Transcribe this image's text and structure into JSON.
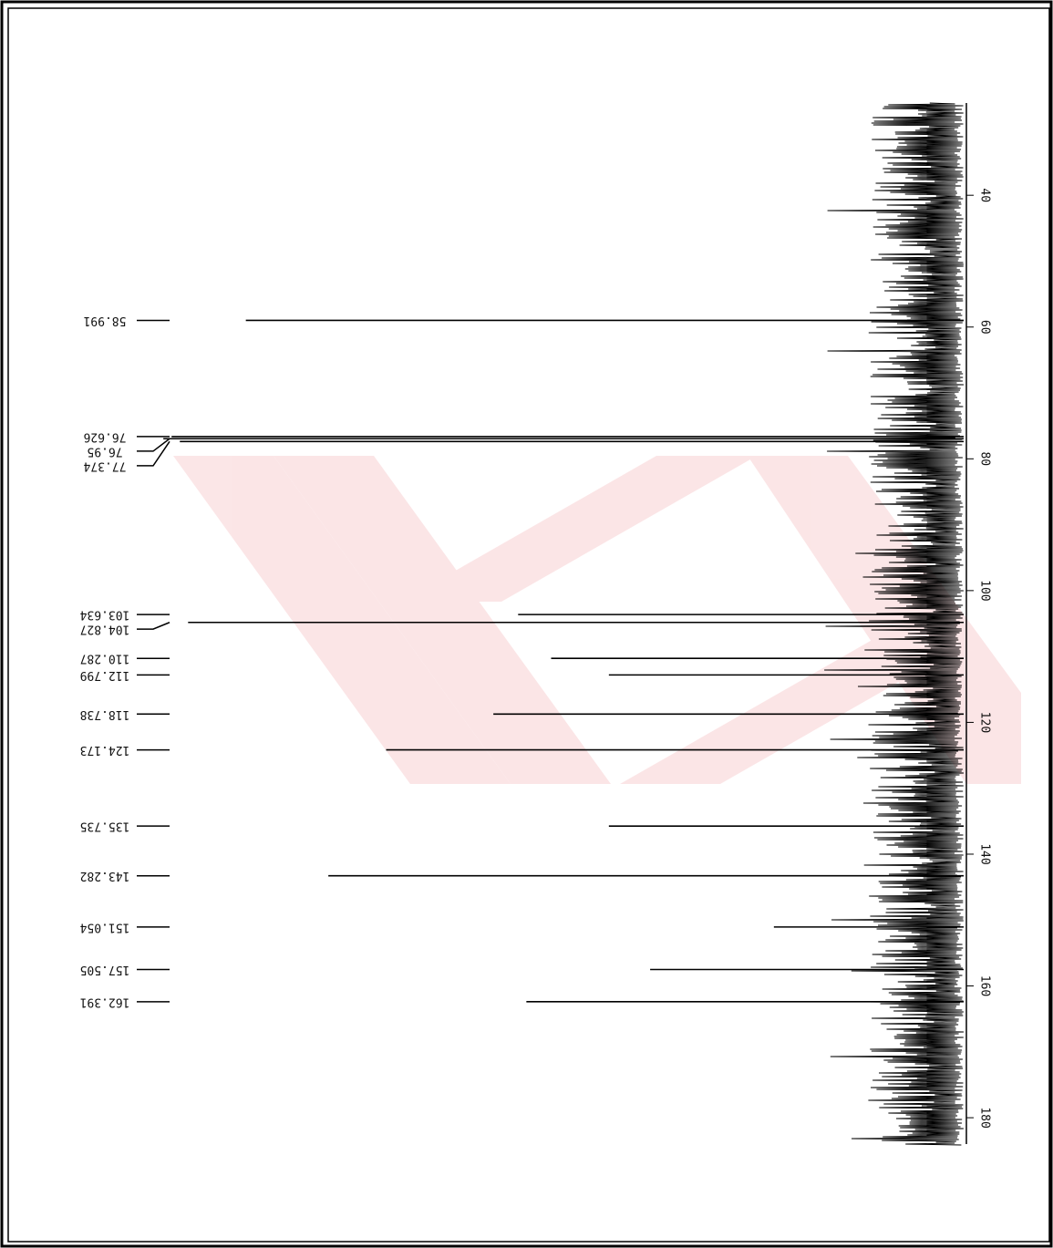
{
  "chart_data": {
    "type": "nmr",
    "x": [
      58.991,
      76.626,
      76.95,
      77.374,
      103.634,
      104.827,
      110.287,
      112.799,
      118.738,
      124.173,
      135.735,
      143.282,
      151.054,
      157.505,
      162.391
    ],
    "values": [
      87,
      96,
      97,
      95,
      54,
      94,
      50,
      43,
      57,
      70,
      43,
      77,
      23,
      38,
      53
    ],
    "xlim": [
      26,
      184
    ],
    "xticks": [
      40,
      60,
      80,
      100,
      120,
      140,
      160,
      180
    ],
    "ylim": [
      0,
      100
    ],
    "color": "#000000"
  }
}
